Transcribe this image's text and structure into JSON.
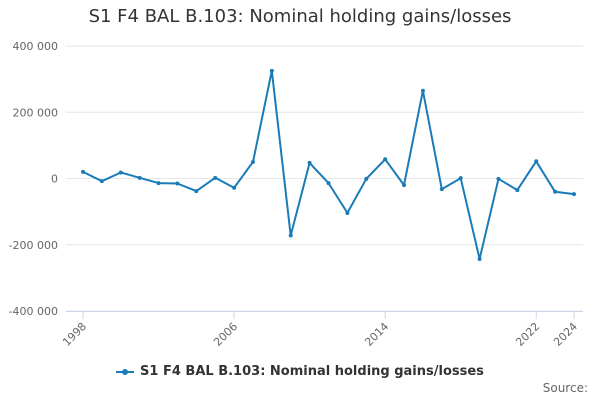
{
  "chart_data": {
    "type": "line",
    "title": "S1 F4 BAL B.103: Nominal holding gains/losses",
    "xlabel": "",
    "ylabel": "",
    "x": [
      1998,
      1999,
      2000,
      2001,
      2002,
      2003,
      2004,
      2005,
      2006,
      2007,
      2008,
      2009,
      2010,
      2011,
      2012,
      2013,
      2014,
      2015,
      2016,
      2017,
      2018,
      2019,
      2020,
      2021,
      2022,
      2023,
      2024
    ],
    "series": [
      {
        "name": "S1 F4 BAL B.103: Nominal holding gains/losses",
        "values": [
          20000,
          -8000,
          18000,
          2000,
          -14000,
          -15000,
          -38000,
          2000,
          -28000,
          50000,
          325000,
          -172000,
          47000,
          -14000,
          -104000,
          -1000,
          58000,
          -20000,
          265000,
          -32000,
          1000,
          -243000,
          -1000,
          -35000,
          52000,
          -40000,
          -47000
        ]
      }
    ],
    "ylim": [
      -400000,
      400000
    ],
    "yticks": [
      -400000,
      -200000,
      0,
      200000,
      400000
    ],
    "ytick_labels": [
      "-400 000",
      "-200 000",
      "0",
      "200 000",
      "400 000"
    ],
    "xticks": [
      1998,
      2006,
      2014,
      2022,
      2024
    ],
    "xtick_labels": [
      "1998",
      "2006",
      "2014",
      "2022",
      "2024"
    ],
    "grid": true,
    "legend_position": "bottom-center"
  },
  "credits": "Source:",
  "colors": {
    "series": "#1a7bb9",
    "grid": "#e6e6e6",
    "axis": "#ccd6eb",
    "tick_label": "#666666"
  }
}
